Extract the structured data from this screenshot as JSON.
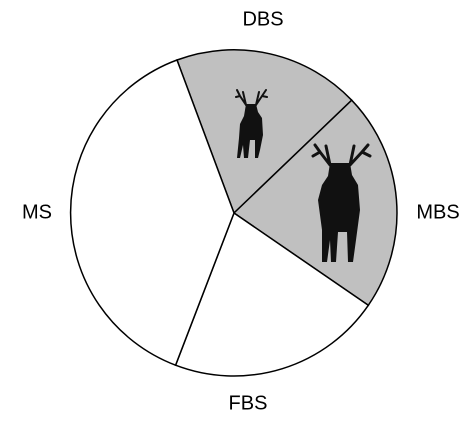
{
  "sectors": [
    {
      "label": "DBS"
    },
    {
      "label": "MBS"
    },
    {
      "label": "FBS"
    },
    {
      "label": "MS"
    }
  ]
}
